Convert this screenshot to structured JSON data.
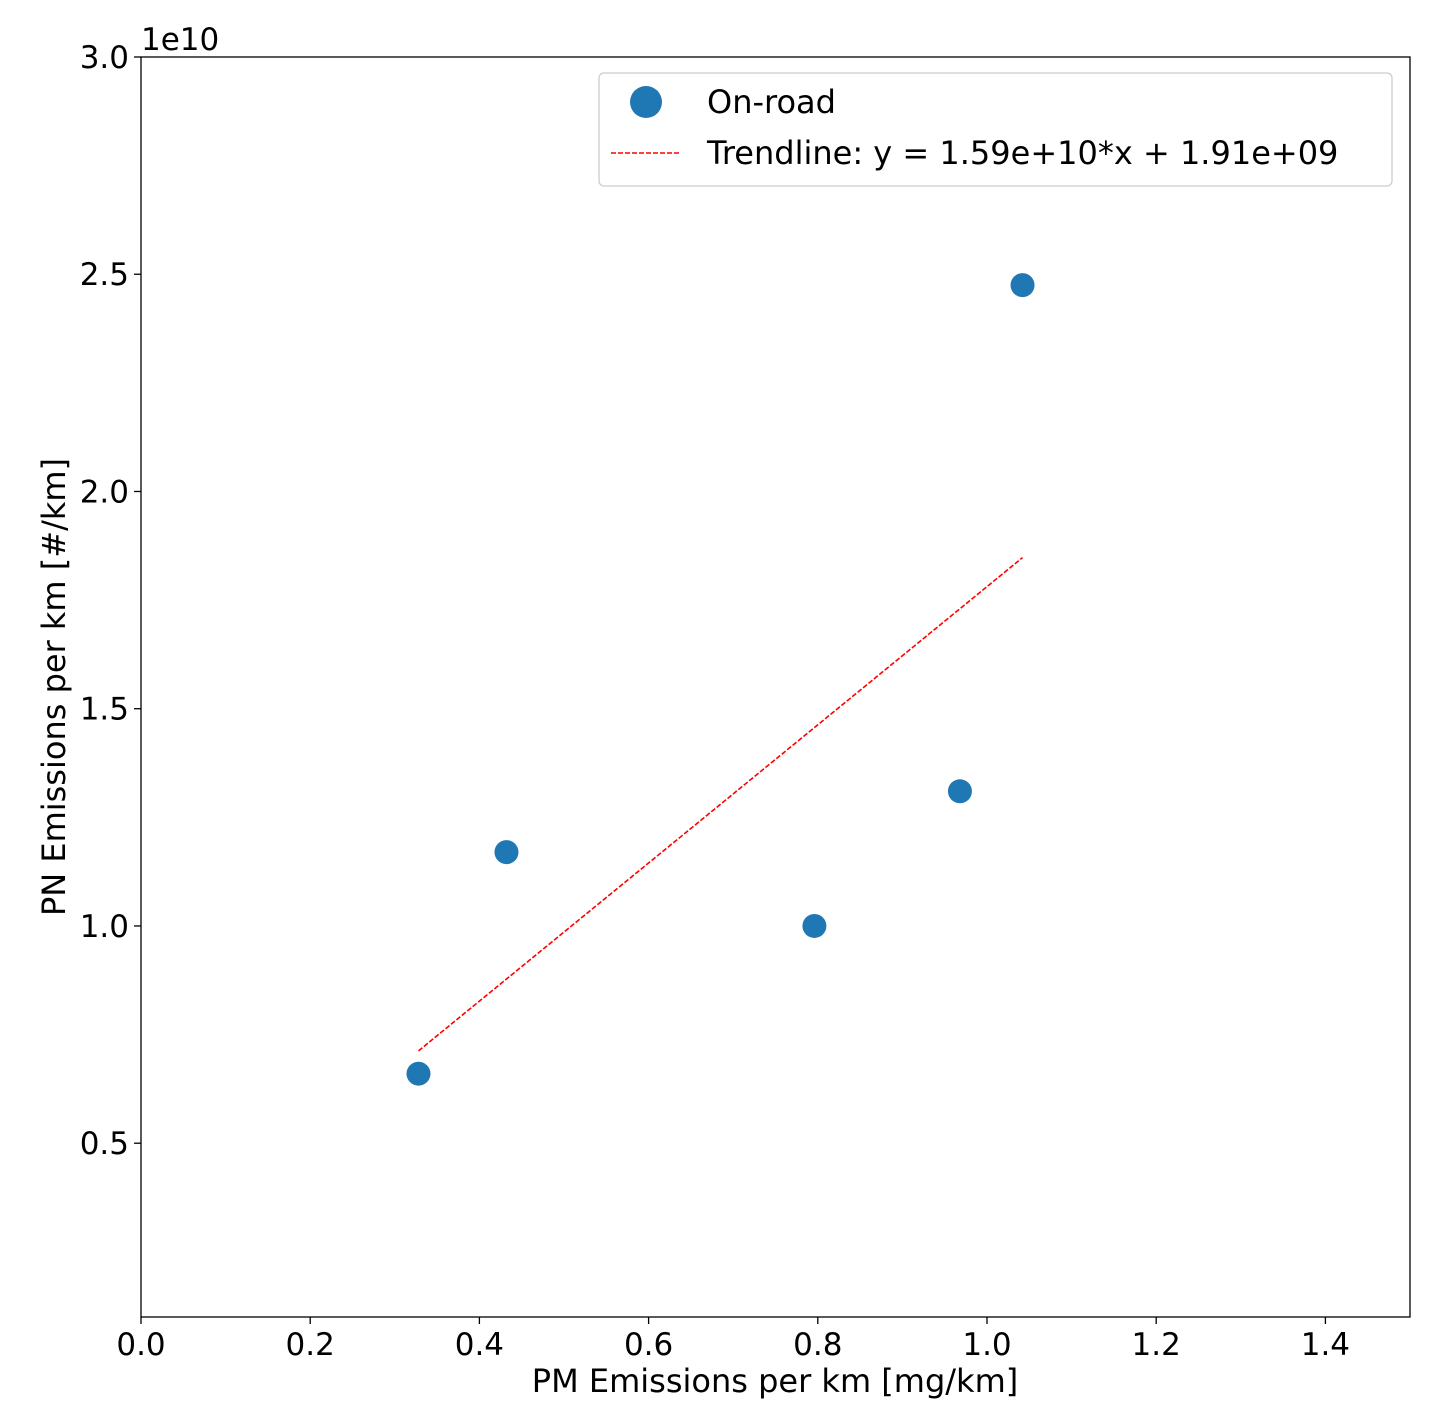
{
  "chart_data": {
    "type": "scatter",
    "title": "",
    "xlabel": "PM Emissions per km [mg/km]",
    "ylabel": "PN Emissions per km [#/km]",
    "xlim": [
      0,
      1.5
    ],
    "ylim": [
      1000000000.0,
      30000000000.0
    ],
    "y_offset_text": "1e10",
    "y_scale": 10000000000.0,
    "x_ticks": [
      0.0,
      0.2,
      0.4,
      0.6,
      0.8,
      1.0,
      1.2,
      1.4
    ],
    "x_tick_labels": [
      "0.0",
      "0.2",
      "0.4",
      "0.6",
      "0.8",
      "1.0",
      "1.2",
      "1.4"
    ],
    "y_ticks": [
      0.5,
      1.0,
      1.5,
      2.0,
      2.5,
      3.0
    ],
    "y_tick_labels": [
      "0.5",
      "1.0",
      "1.5",
      "2.0",
      "2.5",
      "3.0"
    ],
    "grid": false,
    "legend_position": "top-right",
    "series": [
      {
        "name": "On-road",
        "kind": "scatter",
        "color": "#1f77b4",
        "x": [
          0.328,
          0.432,
          0.796,
          0.968,
          1.042
        ],
        "y": [
          6600000000.0,
          11700000000.0,
          10000000000.0,
          13100000000.0,
          24750000000.0
        ]
      },
      {
        "name": "Trendline: y = 1.59e+10*x + 1.91e+09",
        "kind": "line",
        "style": "dashed",
        "color": "#ff0000",
        "slope": 15900000000.0,
        "intercept": 1910000000.0,
        "x_range": [
          0.328,
          1.042
        ]
      }
    ]
  }
}
